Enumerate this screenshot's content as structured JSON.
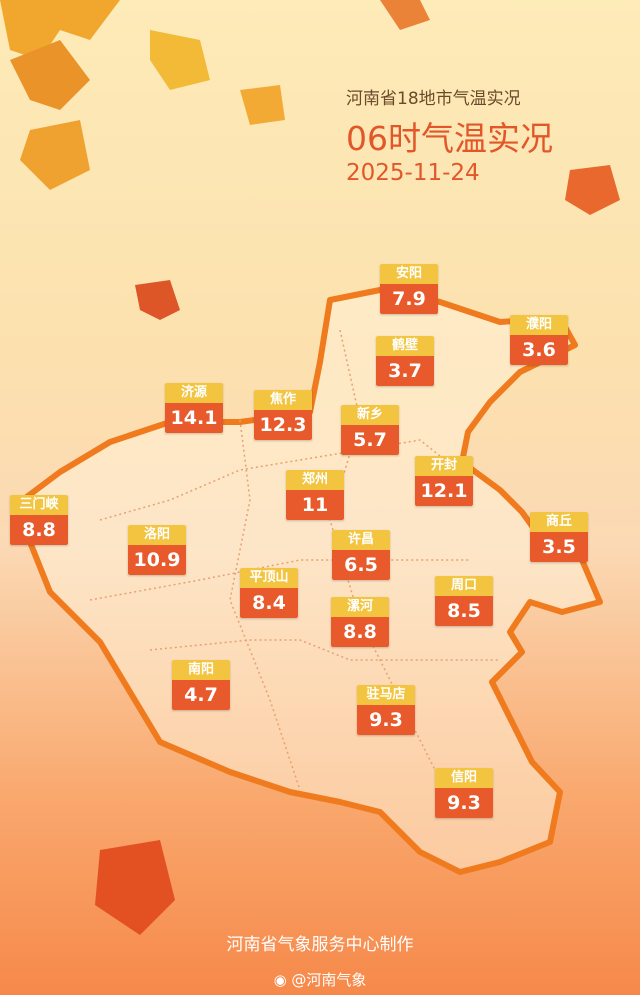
{
  "header": {
    "subtitle": "河南省18地市气温实况",
    "title": "06时气温实况",
    "date": "2025-11-24"
  },
  "colors": {
    "name_bg": "#f3c43f",
    "value_bg": "#e8592b",
    "border": "#f07a1e"
  },
  "cities": [
    {
      "name": "安阳",
      "value": "7.9"
    },
    {
      "name": "濮阳",
      "value": "3.6"
    },
    {
      "name": "鹤壁",
      "value": "3.7"
    },
    {
      "name": "济源",
      "value": "14.1"
    },
    {
      "name": "焦作",
      "value": "12.3"
    },
    {
      "name": "新乡",
      "value": "5.7"
    },
    {
      "name": "开封",
      "value": "12.1"
    },
    {
      "name": "郑州",
      "value": "11"
    },
    {
      "name": "三门峡",
      "value": "8.8"
    },
    {
      "name": "商丘",
      "value": "3.5"
    },
    {
      "name": "洛阳",
      "value": "10.9"
    },
    {
      "name": "许昌",
      "value": "6.5"
    },
    {
      "name": "平顶山",
      "value": "8.4"
    },
    {
      "name": "周口",
      "value": "8.5"
    },
    {
      "name": "漯河",
      "value": "8.8"
    },
    {
      "name": "南阳",
      "value": "4.7"
    },
    {
      "name": "驻马店",
      "value": "9.3"
    },
    {
      "name": "信阳",
      "value": "9.3"
    }
  ],
  "footer": {
    "credit": "河南省气象服务中心制作",
    "weibo": "@河南气象",
    "weibo_icon": "weibo-icon"
  }
}
